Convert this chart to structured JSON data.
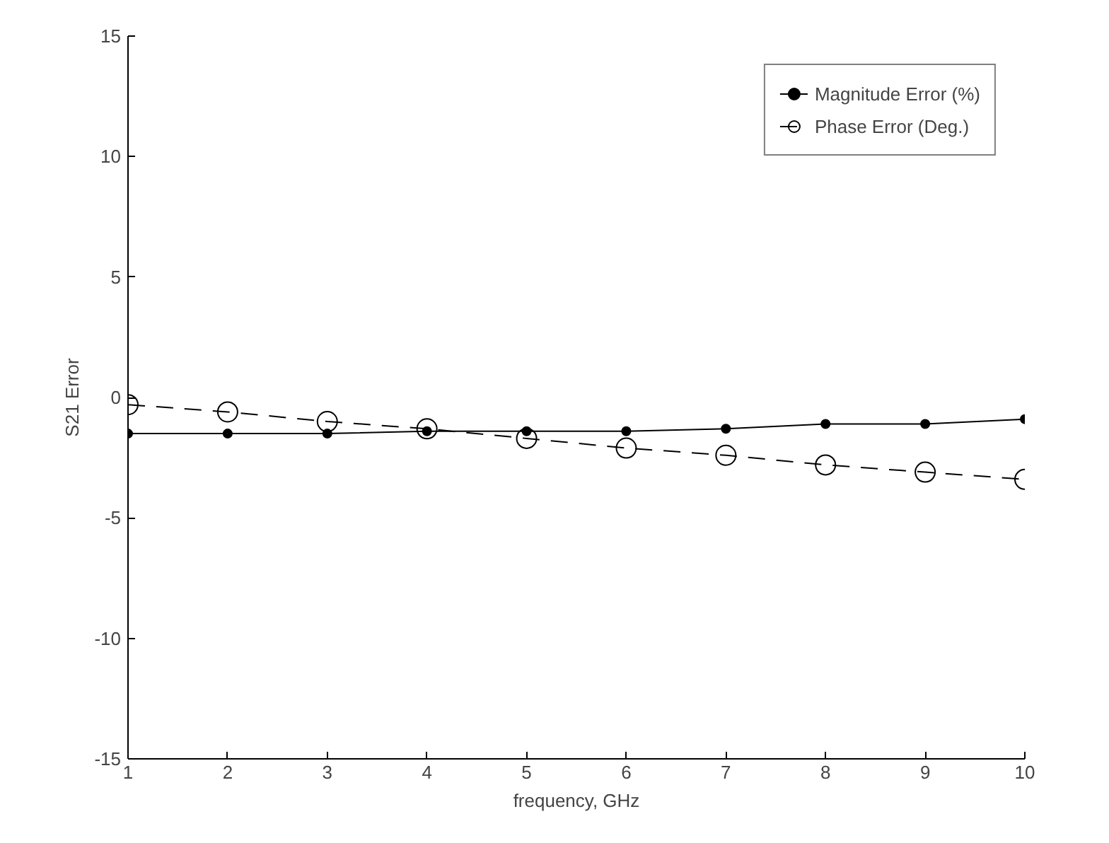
{
  "chart_data": {
    "type": "line",
    "xlabel": "frequency, GHz",
    "ylabel": "S21 Error",
    "x": [
      1,
      2,
      3,
      4,
      5,
      6,
      7,
      8,
      9,
      10
    ],
    "xlim": [
      1,
      10
    ],
    "xticks": [
      1,
      2,
      3,
      4,
      5,
      6,
      7,
      8,
      9,
      10
    ],
    "ylim": [
      -15,
      15
    ],
    "yticks": [
      -15,
      -10,
      -5,
      0,
      5,
      10,
      15
    ],
    "grid": false,
    "legend": "top right",
    "series": [
      {
        "name": "Magnitude Error (%)",
        "color": "#000000",
        "marker": "circle",
        "line_style": "solid",
        "values": [
          -1.5,
          -1.5,
          -1.5,
          -1.4,
          -1.4,
          -1.4,
          -1.3,
          -1.1,
          -1.1,
          -0.9
        ]
      },
      {
        "name": "Phase Error (Deg.)",
        "color": "#000000",
        "marker": "open_circle",
        "line_style": "dashed",
        "values": [
          -0.3,
          -0.6,
          -1.0,
          -1.3,
          -1.7,
          -2.1,
          -2.4,
          -2.8,
          -3.1,
          -3.4
        ]
      }
    ]
  }
}
